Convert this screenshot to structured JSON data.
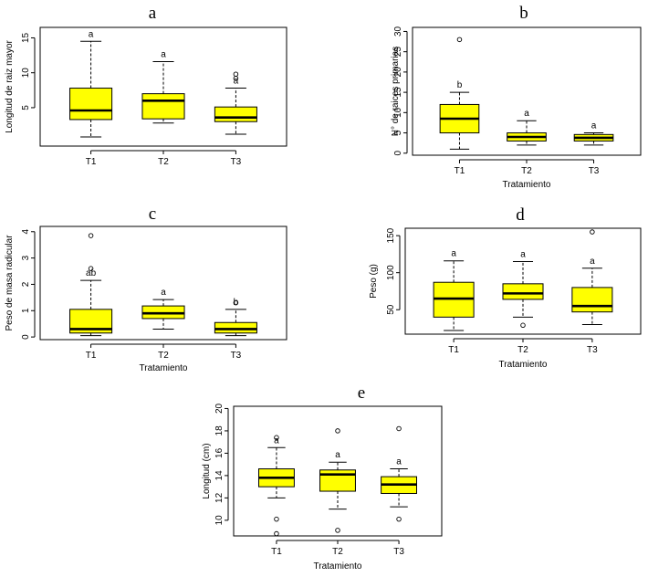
{
  "colors": {
    "box_fill": "#ffff00",
    "stroke": "#000000",
    "background": "#ffffff"
  },
  "chart_data": [
    {
      "type": "boxplot",
      "panel": "a",
      "xlabel": "",
      "ylabel": "Longitud de raiz mayor",
      "categories": [
        "T1",
        "T2",
        "T3"
      ],
      "ylim": [
        -0.5,
        16.5
      ],
      "yticks": [
        5,
        10,
        15
      ],
      "boxes": [
        {
          "min": 0.8,
          "q1": 3.3,
          "median": 4.6,
          "q3": 7.8,
          "max": 14.5,
          "outliers": [],
          "label": "a"
        },
        {
          "min": 2.8,
          "q1": 3.4,
          "median": 6.0,
          "q3": 7.0,
          "max": 11.6,
          "outliers": [],
          "label": "a"
        },
        {
          "min": 1.2,
          "q1": 3.0,
          "median": 3.6,
          "q3": 5.1,
          "max": 7.8,
          "outliers": [
            9.2,
            9.8
          ],
          "label": "a"
        }
      ]
    },
    {
      "type": "boxplot",
      "panel": "b",
      "xlabel": "Tratamiento",
      "ylabel": "N° de raices primarias",
      "categories": [
        "T1",
        "T2",
        "T3"
      ],
      "ylim": [
        -0.5,
        31
      ],
      "yticks": [
        0,
        5,
        10,
        15,
        20,
        25,
        30
      ],
      "boxes": [
        {
          "min": 1,
          "q1": 5,
          "median": 8.5,
          "q3": 12,
          "max": 15,
          "outliers": [
            28
          ],
          "label": "b"
        },
        {
          "min": 2,
          "q1": 3,
          "median": 4,
          "q3": 5,
          "max": 8,
          "outliers": [],
          "label": "a"
        },
        {
          "min": 2,
          "q1": 3,
          "median": 3.8,
          "q3": 4.6,
          "max": 5,
          "outliers": [],
          "label": "a"
        }
      ]
    },
    {
      "type": "boxplot",
      "panel": "c",
      "xlabel": "Tratamiento",
      "ylabel": "Peso de masa radicular",
      "categories": [
        "T1",
        "T2",
        "T3"
      ],
      "ylim": [
        -0.1,
        4.2
      ],
      "yticks": [
        0,
        1,
        2,
        3,
        4
      ],
      "boxes": [
        {
          "min": 0.05,
          "q1": 0.15,
          "median": 0.3,
          "q3": 1.05,
          "max": 2.15,
          "outliers": [
            2.6,
            3.85
          ],
          "label": "ab"
        },
        {
          "min": 0.3,
          "q1": 0.7,
          "median": 0.9,
          "q3": 1.18,
          "max": 1.42,
          "outliers": [],
          "label": "a"
        },
        {
          "min": 0.05,
          "q1": 0.15,
          "median": 0.3,
          "q3": 0.55,
          "max": 1.05,
          "outliers": [
            1.3
          ],
          "label": "b"
        }
      ]
    },
    {
      "type": "boxplot",
      "panel": "d",
      "xlabel": "Tratamiento",
      "ylabel": "Peso (g)",
      "categories": [
        "T1",
        "T2",
        "T3"
      ],
      "ylim": [
        17,
        160
      ],
      "yticks": [
        50,
        100,
        150
      ],
      "boxes": [
        {
          "min": 22,
          "q1": 40,
          "median": 65,
          "q3": 87,
          "max": 116,
          "outliers": [],
          "label": "a"
        },
        {
          "min": 40,
          "q1": 64,
          "median": 72,
          "q3": 85,
          "max": 115,
          "outliers": [
            29
          ],
          "label": "a"
        },
        {
          "min": 30,
          "q1": 47,
          "median": 55,
          "q3": 80,
          "max": 106,
          "outliers": [
            155
          ],
          "label": "a"
        }
      ]
    },
    {
      "type": "boxplot",
      "panel": "e",
      "xlabel": "Tratamiento",
      "ylabel": "Longitud (cm)",
      "categories": [
        "T1",
        "T2",
        "T3"
      ],
      "ylim": [
        8.6,
        20.2
      ],
      "yticks": [
        10,
        12,
        14,
        16,
        18,
        20
      ],
      "boxes": [
        {
          "min": 12,
          "q1": 13,
          "median": 13.8,
          "q3": 14.6,
          "max": 16.5,
          "outliers": [
            10.1,
            17.4,
            8.8
          ],
          "label": "a"
        },
        {
          "min": 11,
          "q1": 12.6,
          "median": 14.1,
          "q3": 14.5,
          "max": 15.2,
          "outliers": [
            9.1,
            18
          ],
          "label": "a"
        },
        {
          "min": 11.2,
          "q1": 12.4,
          "median": 13.2,
          "q3": 13.9,
          "max": 14.6,
          "outliers": [
            10.1,
            18.2
          ],
          "label": "a"
        }
      ]
    }
  ]
}
